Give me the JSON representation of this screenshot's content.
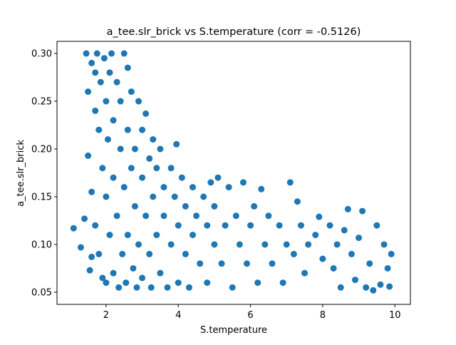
{
  "chart_data": {
    "type": "scatter",
    "title": "a_tee.slr_brick vs S.temperature (corr = -0.5126)",
    "x_label": "S.temperature",
    "y_label": "a_tee.slr_brick",
    "color": "#1f77b4",
    "xlim": [
      0.64,
      10.43
    ],
    "ylim": [
      0.0373,
      0.3127
    ],
    "xticks": [
      2,
      4,
      6,
      8,
      10
    ],
    "yticks": [
      0.05,
      {
        "value": 0.1,
        "label": "0.10"
      },
      0.15,
      {
        "value": 0.2,
        "label": "0.20"
      },
      0.25,
      {
        "value": 0.3,
        "label": "0.30"
      }
    ],
    "x": [
      1.1,
      1.3,
      1.4,
      1.45,
      1.5,
      1.5,
      1.55,
      1.6,
      1.6,
      1.6,
      1.7,
      1.7,
      1.7,
      1.75,
      1.8,
      1.8,
      1.85,
      1.9,
      1.9,
      1.95,
      2.0,
      2.0,
      2.0,
      2.05,
      2.1,
      2.1,
      2.15,
      2.2,
      2.2,
      2.2,
      2.3,
      2.3,
      2.35,
      2.4,
      2.4,
      2.45,
      2.5,
      2.5,
      2.55,
      2.6,
      2.6,
      2.6,
      2.7,
      2.7,
      2.75,
      2.8,
      2.8,
      2.85,
      2.9,
      2.9,
      3.0,
      3.0,
      3.0,
      3.1,
      3.1,
      3.2,
      3.2,
      3.25,
      3.3,
      3.3,
      3.4,
      3.4,
      3.5,
      3.5,
      3.6,
      3.6,
      3.7,
      3.8,
      3.8,
      3.9,
      3.95,
      4.0,
      4.0,
      4.1,
      4.2,
      4.2,
      4.3,
      4.4,
      4.4,
      4.5,
      4.6,
      4.7,
      4.8,
      4.8,
      4.9,
      5.0,
      5.0,
      5.1,
      5.2,
      5.3,
      5.4,
      5.5,
      5.6,
      5.7,
      5.8,
      5.9,
      6.0,
      6.1,
      6.2,
      6.3,
      6.4,
      6.5,
      6.6,
      6.8,
      6.9,
      7.0,
      7.1,
      7.2,
      7.3,
      7.4,
      7.5,
      7.6,
      7.8,
      7.9,
      8.0,
      8.2,
      8.3,
      8.4,
      8.5,
      8.6,
      8.7,
      8.8,
      8.9,
      9.0,
      9.1,
      9.2,
      9.3,
      9.4,
      9.5,
      9.6,
      9.7,
      9.8,
      9.9,
      9.85
    ],
    "y": [
      0.117,
      0.097,
      0.127,
      0.3,
      0.193,
      0.26,
      0.073,
      0.29,
      0.155,
      0.087,
      0.28,
      0.24,
      0.12,
      0.3,
      0.22,
      0.09,
      0.27,
      0.18,
      0.065,
      0.295,
      0.25,
      0.15,
      0.06,
      0.21,
      0.28,
      0.11,
      0.3,
      0.23,
      0.17,
      0.07,
      0.27,
      0.13,
      0.055,
      0.25,
      0.2,
      0.09,
      0.3,
      0.16,
      0.06,
      0.285,
      0.22,
      0.11,
      0.26,
      0.18,
      0.075,
      0.2,
      0.14,
      0.055,
      0.25,
      0.1,
      0.22,
      0.17,
      0.065,
      0.237,
      0.13,
      0.19,
      0.09,
      0.055,
      0.21,
      0.15,
      0.18,
      0.11,
      0.2,
      0.07,
      0.16,
      0.13,
      0.055,
      0.18,
      0.1,
      0.15,
      0.205,
      0.12,
      0.06,
      0.17,
      0.14,
      0.09,
      0.055,
      0.16,
      0.11,
      0.13,
      0.08,
      0.15,
      0.12,
      0.06,
      0.165,
      0.1,
      0.14,
      0.17,
      0.08,
      0.12,
      0.16,
      0.055,
      0.13,
      0.1,
      0.165,
      0.08,
      0.12,
      0.14,
      0.06,
      0.158,
      0.1,
      0.13,
      0.08,
      0.12,
      0.06,
      0.1,
      0.165,
      0.09,
      0.145,
      0.12,
      0.07,
      0.1,
      0.11,
      0.129,
      0.085,
      0.12,
      0.075,
      0.1,
      0.055,
      0.115,
      0.137,
      0.09,
      0.063,
      0.107,
      0.135,
      0.055,
      0.08,
      0.052,
      0.12,
      0.058,
      0.1,
      0.075,
      0.09,
      0.056
    ]
  }
}
